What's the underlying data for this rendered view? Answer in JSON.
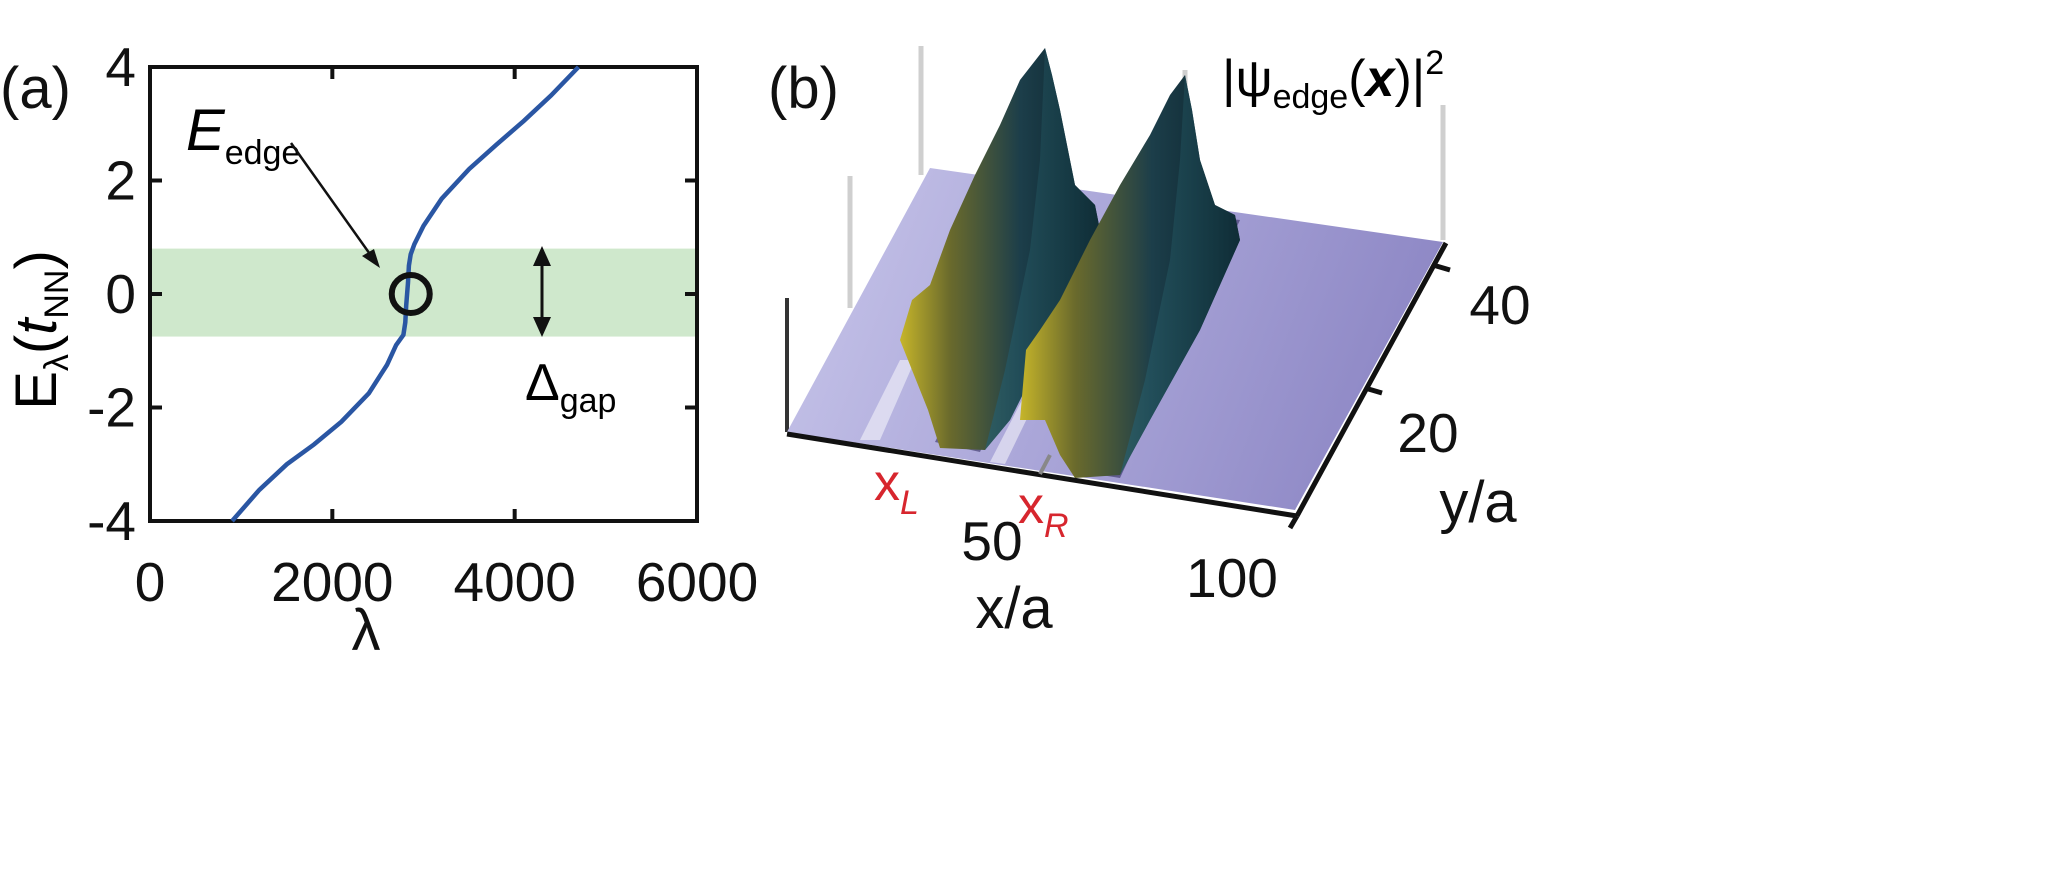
{
  "chart_data": [
    {
      "panel": "(a)",
      "type": "line",
      "xlabel": "λ",
      "ylabel": {
        "main": "E",
        "sub1": "λ",
        "paren_open": "(",
        "t": "t",
        "sub2": "NN",
        "paren_close": ")"
      },
      "xlim": [
        0,
        6000
      ],
      "ylim": [
        -4,
        4
      ],
      "xticks": [
        "0",
        "2000",
        "4000",
        "6000"
      ],
      "yticks": [
        "4",
        "2",
        "0",
        "-2",
        "-4"
      ],
      "series": [
        {
          "color": "#2a56a3",
          "x": [
            900,
            1200,
            1500,
            1800,
            2100,
            2400,
            2600,
            2700,
            2780,
            2800,
            2810,
            2820,
            2830,
            2840,
            2860,
            2900,
            3000,
            3200,
            3500,
            3800,
            4100,
            4400,
            4700
          ],
          "y": [
            -4.0,
            -3.45,
            -3.0,
            -2.65,
            -2.25,
            -1.75,
            -1.25,
            -0.9,
            -0.72,
            -0.5,
            -0.2,
            0.0,
            0.2,
            0.5,
            0.7,
            0.88,
            1.2,
            1.68,
            2.2,
            2.63,
            3.05,
            3.5,
            4.0
          ]
        }
      ],
      "gap_band": {
        "ymin": -0.75,
        "ymax": 0.8,
        "color": "#cfe8cc"
      },
      "edge_marker": {
        "x": 2860,
        "y": 0.0
      },
      "annotations": {
        "edge": {
          "main": "E",
          "sub": "edge"
        },
        "gap": {
          "main": "Δ",
          "sub": "gap"
        }
      }
    },
    {
      "panel": "(b)",
      "type": "surface",
      "title": {
        "prefix": "|ψ",
        "sub": "edge",
        "open": "(",
        "bold": "x",
        "close": ")|",
        "sup": "2"
      },
      "xlabel": "x/a",
      "ylabel": "y/a",
      "xticks": [
        "50",
        "100"
      ],
      "yticks": [
        "20",
        "40"
      ],
      "markers": [
        {
          "main": "x",
          "sub": "L",
          "color": "#d7262e"
        },
        {
          "main": "x",
          "sub": "R",
          "color": "#d7262e"
        }
      ],
      "surface_color": "#a8a4d6",
      "peak_color": "#c8c020"
    }
  ]
}
